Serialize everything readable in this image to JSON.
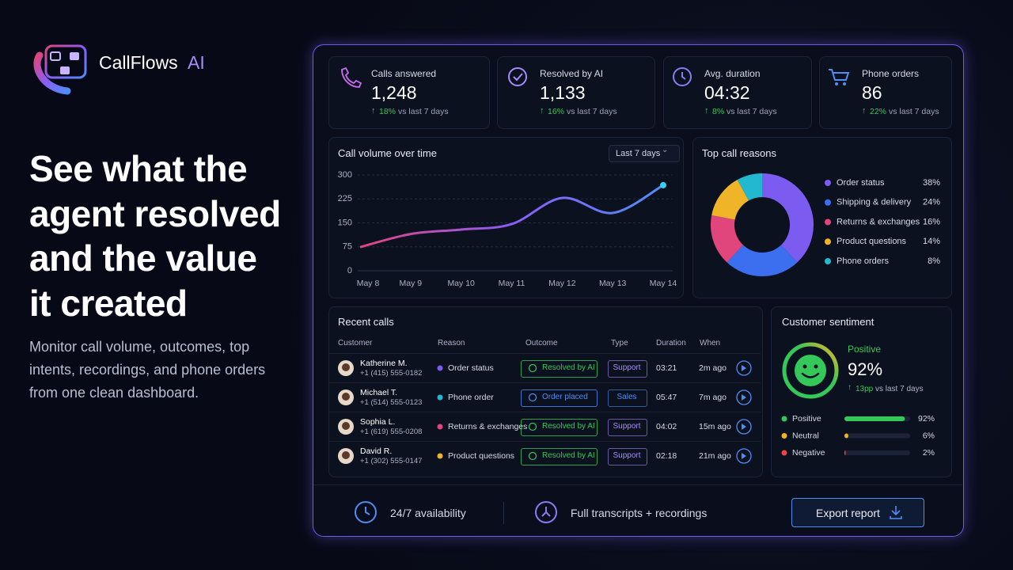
{
  "brand": {
    "name": "CallFlows",
    "accent": "AI"
  },
  "hero": {
    "title_lines": [
      "See what the",
      "agent resolved",
      "and the value",
      "it created"
    ],
    "description": "Monitor call volume, outcomes, top intents, recordings, and phone orders from one clean dashboard."
  },
  "kpis": [
    {
      "label": "Calls answered",
      "value": "1,248",
      "change": "18%",
      "note": "vs last 7 days"
    },
    {
      "label": "Resolved by AI",
      "value": "1,133",
      "change": "16%",
      "note": "vs last 7 days"
    },
    {
      "label": "Avg. duration",
      "value": "04:32",
      "change": "8%",
      "note": "vs last 7 days"
    },
    {
      "label": "Phone orders",
      "value": "86",
      "change": "22%",
      "note": "vs last 7 days"
    }
  ],
  "chart_data": [
    {
      "type": "line",
      "title": "Call volume over time",
      "filter": "Last 7 days",
      "categories": [
        "May 8",
        "May 9",
        "May 10",
        "May 11",
        "May 12",
        "May 13",
        "May 14"
      ],
      "values": [
        74,
        115,
        129,
        146,
        228,
        181,
        268
      ],
      "color": [
        "#e0457b",
        "#8b5cf6",
        "#4f8df5"
      ],
      "ylim": [
        0,
        300
      ],
      "yticks": [
        0,
        75,
        150,
        225,
        300
      ],
      "grid": true
    },
    {
      "type": "pie",
      "title": "Top call reasons",
      "categories": [
        "Order status",
        "Shipping & delivery",
        "Returns & exchanges",
        "Product questions",
        "Phone orders"
      ],
      "values": [
        38,
        24,
        16,
        14,
        8
      ],
      "value_labels": [
        "38%",
        "24%",
        "16%",
        "14%",
        "8%"
      ],
      "colors": [
        "#7c5cf0",
        "#3b6ff0",
        "#e0457b",
        "#f0b429",
        "#22b8cf"
      ]
    },
    {
      "type": "bar",
      "orientation": "horizontal",
      "categories": [
        "Positive",
        "Neutral",
        "Negative"
      ],
      "values": [
        92,
        6,
        2
      ],
      "value_labels": [
        "92%",
        "6%",
        "2%"
      ],
      "colors": [
        "#34c759",
        "#f0b429",
        "#ef4444"
      ],
      "xlim": [
        0,
        100
      ]
    }
  ],
  "calls": {
    "title": "Recent calls",
    "columns": [
      "Customer",
      "Reason",
      "Outcome",
      "Type",
      "Duration",
      "When"
    ],
    "rows": [
      {
        "name": "Katherine M.",
        "phone": "+1 (415) 555-0182",
        "reason": "Order status",
        "dot": "#7c5cf0",
        "outcome": "Resolved by AI",
        "outcome_color": "#34c759",
        "type": "Support",
        "type_color": "#a78bfa",
        "duration": "03:21",
        "when": "2m ago"
      },
      {
        "name": "Michael T.",
        "phone": "+1 (514) 555-0123",
        "reason": "Phone order",
        "dot": "#22b8cf",
        "outcome": "Order placed",
        "outcome_color": "#4f8df5",
        "type": "Sales",
        "type_color": "#4f8df5",
        "duration": "05:47",
        "when": "7m ago"
      },
      {
        "name": "Sophia L.",
        "phone": "+1 (619) 555-0208",
        "reason": "Returns & exchanges",
        "dot": "#e0457b",
        "outcome": "Resolved by AI",
        "outcome_color": "#34c759",
        "type": "Support",
        "type_color": "#a78bfa",
        "duration": "04:02",
        "when": "15m ago"
      },
      {
        "name": "David R.",
        "phone": "+1 (302) 555-0147",
        "reason": "Product questions",
        "dot": "#f0b429",
        "outcome": "Resolved by AI",
        "outcome_color": "#34c759",
        "type": "Support",
        "type_color": "#a78bfa",
        "duration": "02:18",
        "when": "21m ago"
      }
    ]
  },
  "sentiment": {
    "title": "Customer sentiment",
    "label": "Positive",
    "value": "92%",
    "change": "13pp",
    "note": "vs last 7 days"
  },
  "footer": {
    "items": [
      "24/7 availability",
      "Full transcripts + recordings"
    ],
    "button": "Export report"
  }
}
